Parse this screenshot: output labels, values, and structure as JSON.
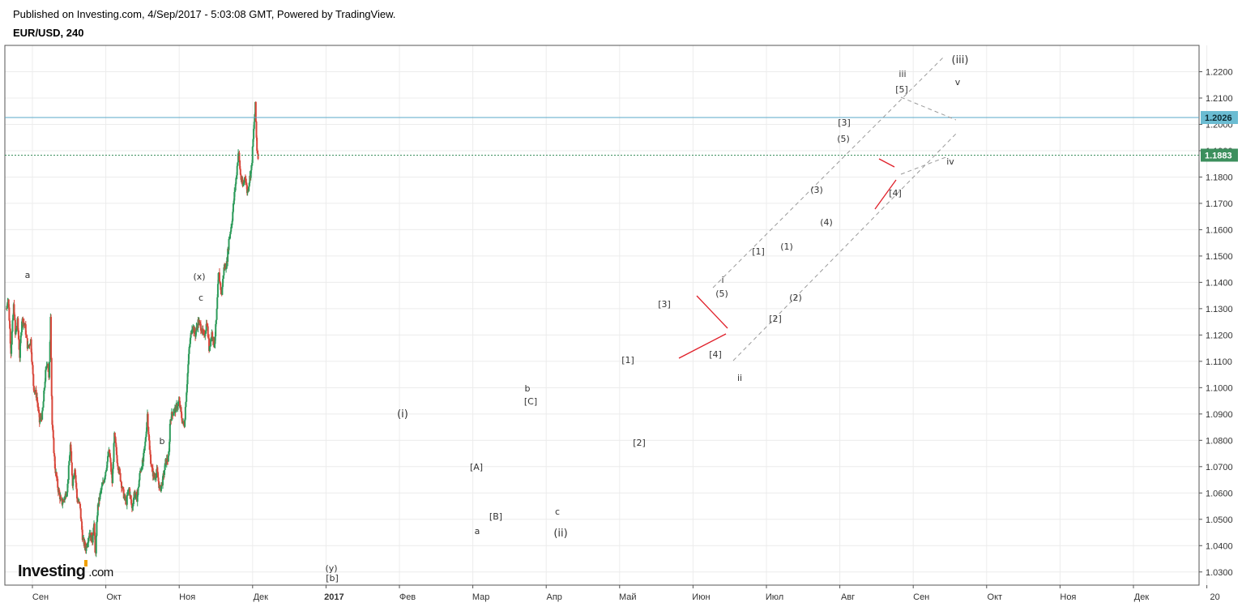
{
  "header": {
    "published": "Published on Investing.com, 4/Sep/2017 - 5:03:08 GMT, Powered by TradingView.",
    "symbol": "EUR/USD, 240"
  },
  "logo": {
    "brand": "Investing",
    "suffix": ".com"
  },
  "colors": {
    "up": "#2d9b5a",
    "down": "#d9473b",
    "hline": "#5aa9c9",
    "last_tag": "#3c8f5d",
    "hline_tag": "#6bbcd2",
    "channel": "#9a9a9a",
    "triangle": "#e0202a"
  },
  "chart_data": {
    "type": "candlestick",
    "title": "EUR/USD, 240",
    "x_tick_labels": [
      "Сен",
      "Окт",
      "Ноя",
      "Дек",
      "2017",
      "Фев",
      "Мар",
      "Апр",
      "Май",
      "Июн",
      "Июл",
      "Авг",
      "Сен",
      "Окт",
      "Ноя",
      "Дек",
      "20"
    ],
    "y_tick_labels": [
      "1.0300",
      "1.0400",
      "1.0500",
      "1.0600",
      "1.0700",
      "1.0800",
      "1.0900",
      "1.1000",
      "1.1100",
      "1.1200",
      "1.1300",
      "1.1400",
      "1.1500",
      "1.1600",
      "1.1700",
      "1.1800",
      "1.1900",
      "1.2000",
      "1.2100",
      "1.2200"
    ],
    "ylim": [
      1.025,
      1.23
    ],
    "horizontal_level": {
      "value": 1.2026,
      "label": "1.2026"
    },
    "last_price": {
      "value": 1.1883,
      "label": "1.1883"
    },
    "price_path": [
      [
        0.0,
        1.13
      ],
      [
        0.02,
        1.135
      ],
      [
        0.04,
        1.125
      ],
      [
        0.06,
        1.114
      ],
      [
        0.08,
        1.123
      ],
      [
        0.1,
        1.132
      ],
      [
        0.12,
        1.12
      ],
      [
        0.15,
        1.125
      ],
      [
        0.18,
        1.112
      ],
      [
        0.21,
        1.126
      ],
      [
        0.25,
        1.124
      ],
      [
        0.29,
        1.115
      ],
      [
        0.33,
        1.118
      ],
      [
        0.37,
        1.1
      ],
      [
        0.41,
        1.097
      ],
      [
        0.45,
        1.087
      ],
      [
        0.49,
        1.09
      ],
      [
        0.53,
        1.105
      ],
      [
        0.56,
        1.111
      ],
      [
        0.58,
        1.102
      ],
      [
        0.6,
        1.128
      ],
      [
        0.62,
        1.087
      ],
      [
        0.66,
        1.07
      ],
      [
        0.7,
        1.062
      ],
      [
        0.75,
        1.056
      ],
      [
        0.79,
        1.058
      ],
      [
        0.83,
        1.062
      ],
      [
        0.87,
        1.078
      ],
      [
        0.9,
        1.064
      ],
      [
        0.93,
        1.07
      ],
      [
        0.96,
        1.058
      ],
      [
        1.0,
        1.055
      ],
      [
        1.04,
        1.042
      ],
      [
        1.08,
        1.039
      ],
      [
        1.13,
        1.045
      ],
      [
        1.17,
        1.042
      ],
      [
        1.19,
        1.05
      ],
      [
        1.21,
        1.035
      ],
      [
        1.24,
        1.054
      ],
      [
        1.28,
        1.06
      ],
      [
        1.32,
        1.064
      ],
      [
        1.36,
        1.07
      ],
      [
        1.4,
        1.076
      ],
      [
        1.44,
        1.064
      ],
      [
        1.47,
        1.082
      ],
      [
        1.51,
        1.072
      ],
      [
        1.55,
        1.066
      ],
      [
        1.59,
        1.06
      ],
      [
        1.63,
        1.056
      ],
      [
        1.67,
        1.062
      ],
      [
        1.71,
        1.054
      ],
      [
        1.74,
        1.06
      ],
      [
        1.78,
        1.058
      ],
      [
        1.82,
        1.068
      ],
      [
        1.86,
        1.072
      ],
      [
        1.89,
        1.079
      ],
      [
        1.92,
        1.09
      ],
      [
        1.95,
        1.076
      ],
      [
        1.98,
        1.069
      ],
      [
        2.01,
        1.066
      ],
      [
        2.05,
        1.068
      ],
      [
        2.09,
        1.061
      ],
      [
        2.13,
        1.065
      ],
      [
        2.17,
        1.072
      ],
      [
        2.21,
        1.073
      ],
      [
        2.23,
        1.088
      ],
      [
        2.27,
        1.091
      ],
      [
        2.31,
        1.092
      ],
      [
        2.35,
        1.095
      ],
      [
        2.39,
        1.088
      ],
      [
        2.42,
        1.085
      ],
      [
        2.45,
        1.098
      ],
      [
        2.49,
        1.115
      ],
      [
        2.53,
        1.124
      ],
      [
        2.57,
        1.12
      ],
      [
        2.61,
        1.125
      ],
      [
        2.65,
        1.123
      ],
      [
        2.69,
        1.119
      ],
      [
        2.73,
        1.125
      ],
      [
        2.76,
        1.115
      ],
      [
        2.8,
        1.121
      ],
      [
        2.83,
        1.116
      ],
      [
        2.86,
        1.126
      ],
      [
        2.89,
        1.144
      ],
      [
        2.93,
        1.135
      ],
      [
        2.96,
        1.145
      ],
      [
        3.0,
        1.147
      ],
      [
        3.03,
        1.156
      ],
      [
        3.07,
        1.163
      ],
      [
        3.1,
        1.172
      ],
      [
        3.13,
        1.18
      ],
      [
        3.16,
        1.19
      ],
      [
        3.19,
        1.18
      ],
      [
        3.22,
        1.176
      ],
      [
        3.25,
        1.181
      ],
      [
        3.28,
        1.174
      ],
      [
        3.31,
        1.179
      ],
      [
        3.34,
        1.184
      ],
      [
        3.37,
        1.199
      ],
      [
        3.39,
        1.207
      ],
      [
        3.41,
        1.191
      ],
      [
        3.43,
        1.188
      ]
    ],
    "wave_labels": [
      "a",
      "b",
      "(x)",
      "c",
      "(y)",
      "[b]",
      "(i)",
      "[A]",
      "a",
      "[B]",
      "b",
      "[C]",
      "c",
      "(ii)",
      "[1]",
      "[2]",
      "[3]",
      "[4]",
      "(5)",
      "i",
      "ii",
      "[1]",
      "[2]",
      "(1)",
      "(2)",
      "(3)",
      "(4)",
      "(5)",
      "[3]",
      "[4]",
      "[5]",
      "iii",
      "iv",
      "v",
      "(iii)"
    ]
  }
}
